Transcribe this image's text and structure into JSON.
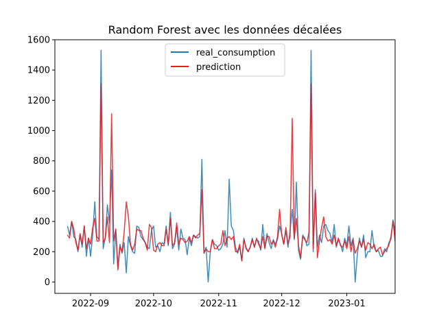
{
  "chart_data": {
    "type": "line",
    "title": "Random Forest avec les données décalées",
    "xlabel": "",
    "ylabel": "",
    "xlim": [
      "2022-08-15",
      "2023-01-24"
    ],
    "ylim": [
      -75,
      1600
    ],
    "x_ticks": [
      "2022-09-01",
      "2022-10-01",
      "2022-11-01",
      "2022-12-01",
      "2023-01-01"
    ],
    "x_tick_labels": [
      "2022-09",
      "2022-10",
      "2022-11",
      "2022-12",
      "2023-01"
    ],
    "y_ticks": [
      0,
      200,
      400,
      600,
      800,
      1000,
      1200,
      1400,
      1600
    ],
    "legend_position": "top-center",
    "grid": false,
    "x_start": "2022-08-21",
    "series": [
      {
        "name": "real_consumption",
        "color": "#1f77b4",
        "values": [
          370,
          310,
          400,
          300,
          280,
          200,
          310,
          230,
          370,
          170,
          290,
          170,
          310,
          530,
          300,
          280,
          1530,
          220,
          290,
          510,
          390,
          740,
          120,
          340,
          100,
          250,
          190,
          260,
          60,
          300,
          240,
          200,
          190,
          370,
          360,
          300,
          280,
          260,
          230,
          220,
          340,
          370,
          230,
          240,
          200,
          260,
          250,
          370,
          240,
          460,
          220,
          250,
          360,
          210,
          350,
          290,
          280,
          180,
          290,
          240,
          310,
          300,
          290,
          300,
          810,
          190,
          230,
          0,
          200,
          280,
          250,
          240,
          210,
          220,
          250,
          340,
          230,
          680,
          370,
          340,
          230,
          190,
          230,
          140,
          290,
          220,
          200,
          230,
          290,
          230,
          280,
          270,
          210,
          380,
          230,
          320,
          260,
          220,
          280,
          250,
          280,
          370,
          320,
          250,
          340,
          230,
          340,
          480,
          280,
          660,
          210,
          150,
          310,
          290,
          240,
          250,
          1530,
          200,
          610,
          230,
          310,
          260,
          370,
          380,
          340,
          320,
          260,
          380,
          230,
          280,
          250,
          200,
          290,
          240,
          370,
          240,
          290,
          0,
          180,
          290,
          230,
          310,
          160,
          200,
          200,
          340,
          230,
          200,
          210,
          170,
          170,
          220,
          200,
          260,
          280,
          410,
          330,
          220,
          300,
          290,
          220,
          310,
          290
        ]
      },
      {
        "name": "prediction",
        "color": "#e8191a",
        "values": [
          310,
          290,
          400,
          350,
          260,
          210,
          320,
          250,
          370,
          220,
          290,
          250,
          360,
          420,
          270,
          270,
          1310,
          260,
          290,
          430,
          260,
          1110,
          270,
          350,
          80,
          230,
          200,
          330,
          530,
          430,
          250,
          210,
          250,
          350,
          340,
          340,
          290,
          260,
          210,
          380,
          360,
          210,
          200,
          250,
          260,
          240,
          240,
          350,
          250,
          420,
          240,
          260,
          390,
          250,
          290,
          280,
          260,
          270,
          300,
          260,
          310,
          290,
          310,
          320,
          610,
          190,
          220,
          200,
          200,
          280,
          220,
          220,
          240,
          250,
          340,
          240,
          290,
          300,
          280,
          300,
          200,
          200,
          250,
          140,
          280,
          230,
          200,
          230,
          280,
          230,
          290,
          250,
          220,
          300,
          220,
          300,
          300,
          250,
          270,
          230,
          300,
          480,
          310,
          250,
          360,
          250,
          300,
          1080,
          290,
          420,
          240,
          160,
          300,
          280,
          260,
          330,
          1310,
          220,
          590,
          160,
          270,
          360,
          430,
          300,
          270,
          280,
          250,
          310,
          240,
          290,
          240,
          230,
          270,
          220,
          300,
          200,
          280,
          190,
          220,
          270,
          230,
          280,
          210,
          260,
          250,
          220,
          250,
          200,
          220,
          230,
          180,
          200,
          220,
          240,
          300,
          400,
          270,
          200,
          270,
          300,
          200,
          300,
          280
        ]
      }
    ]
  }
}
